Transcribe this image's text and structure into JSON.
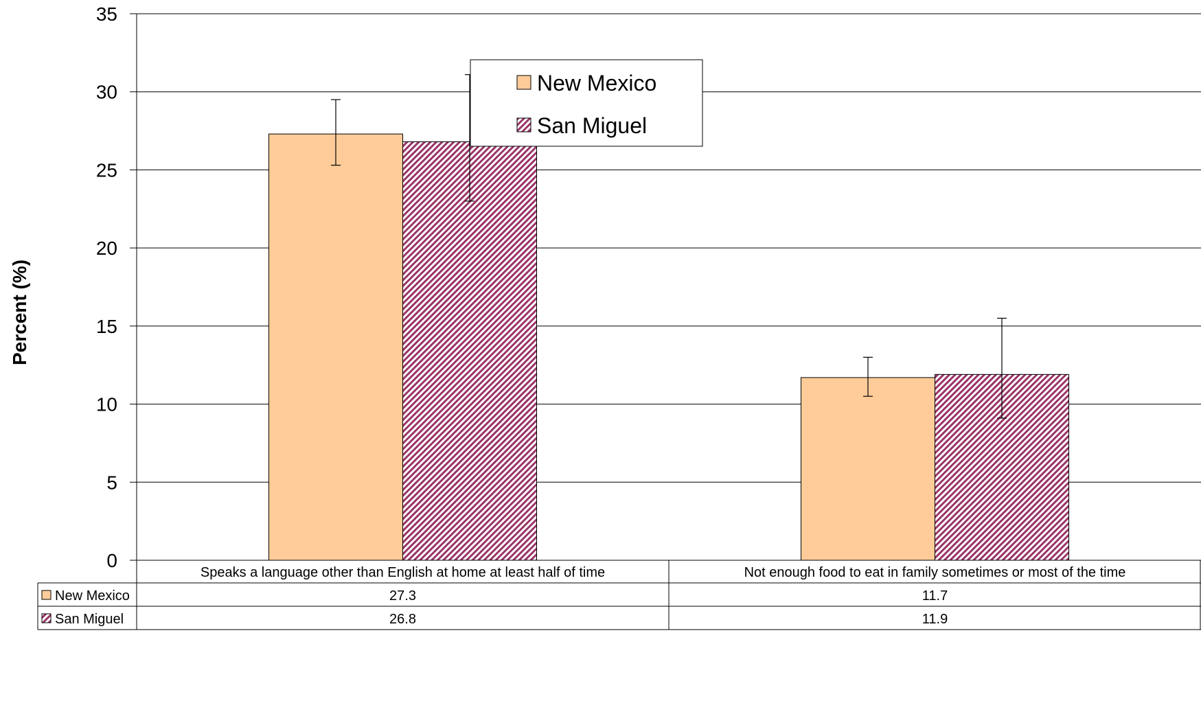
{
  "chart_data": {
    "type": "bar",
    "ylabel": "Percent (%)",
    "ylim": [
      0,
      35
    ],
    "yticks": [
      0,
      5,
      10,
      15,
      20,
      25,
      30,
      35
    ],
    "grid": true,
    "legend_position": "top-center",
    "categories": [
      "Speaks a language other than English at home at least half of time",
      "Not enough food to eat in family sometimes or most of the time"
    ],
    "series": [
      {
        "name": "New Mexico",
        "values": [
          27.3,
          11.7
        ],
        "value_labels": [
          "27.3",
          "11.7"
        ],
        "error_low": [
          25.3,
          10.5
        ],
        "error_high": [
          29.5,
          13.0
        ],
        "color": "#FFCC99",
        "pattern": "solid"
      },
      {
        "name": "San Miguel",
        "values": [
          26.8,
          11.9
        ],
        "value_labels": [
          "26.8",
          "11.9"
        ],
        "error_low": [
          23.0,
          9.1
        ],
        "error_high": [
          31.1,
          15.5
        ],
        "color": "#993366",
        "pattern": "diagonal-stripes"
      }
    ]
  }
}
